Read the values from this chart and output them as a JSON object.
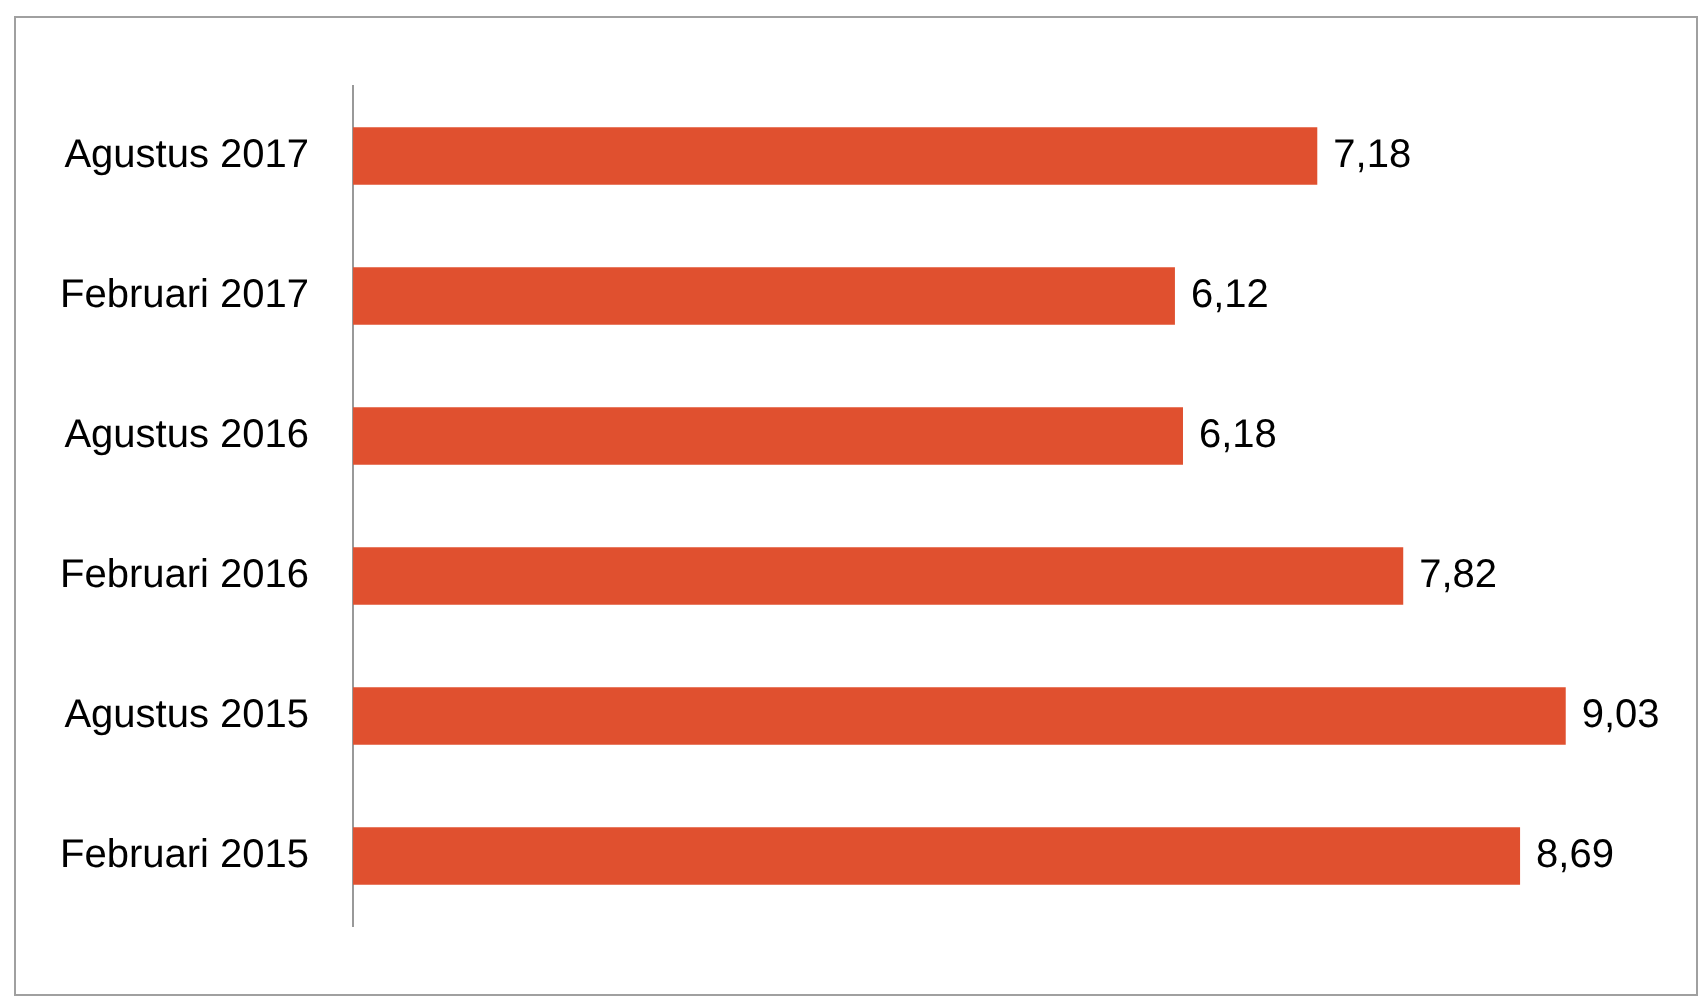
{
  "chart_data": {
    "type": "bar",
    "orientation": "horizontal",
    "categories": [
      "Agustus 2017",
      "Februari 2017",
      "Agustus 2016",
      "Februari 2016",
      "Agustus 2015",
      "Februari 2015"
    ],
    "values": [
      7.18,
      6.12,
      6.18,
      7.82,
      9.03,
      8.69
    ],
    "value_labels": [
      "7,18",
      "6,12",
      "6,18",
      "7,82",
      "9,03",
      "8,69"
    ],
    "color": "#e0502f",
    "legend": false
  }
}
